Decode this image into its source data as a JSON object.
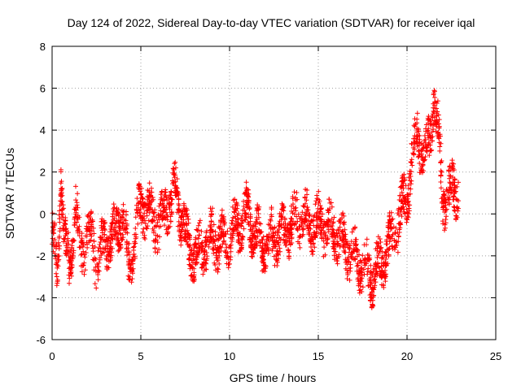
{
  "chart_data": {
    "type": "scatter",
    "title": "Day 124 of 2022, Sidereal Day-to-day VTEC variation (SDTVAR) for receiver iqal",
    "xlabel": "GPS time / hours",
    "ylabel": "SDTVAR / TECUs",
    "xlim": [
      0,
      25
    ],
    "ylim": [
      -6,
      8
    ],
    "xticks": [
      "0",
      "5",
      "10",
      "15",
      "20",
      "25"
    ],
    "yticks": [
      "8",
      "6",
      "4",
      "2",
      "0",
      "-2",
      "-4",
      "-6"
    ],
    "xtick_values": [
      0,
      5,
      10,
      15,
      20,
      25
    ],
    "ytick_values": [
      8,
      6,
      4,
      2,
      0,
      -2,
      -4,
      -6
    ],
    "grid": true,
    "marker": "plus",
    "marker_color": "#ff0000",
    "trend": {
      "x": [
        0,
        0.3,
        0.5,
        0.7,
        1.0,
        1.3,
        1.6,
        2.0,
        2.5,
        3.0,
        3.5,
        4.0,
        4.3,
        4.6,
        5.0,
        5.5,
        6.0,
        6.5,
        7.0,
        7.5,
        8.0,
        8.5,
        9.0,
        9.5,
        10.0,
        10.5,
        11.0,
        11.5,
        12.0,
        12.5,
        13.0,
        13.5,
        14.0,
        14.5,
        15.0,
        15.5,
        16.0,
        16.5,
        17.0,
        17.5,
        18.0,
        18.5,
        19.0,
        19.5,
        20.0,
        20.3,
        20.6,
        21.0,
        21.3,
        21.5,
        21.8,
        22.0,
        22.3,
        22.6,
        22.9
      ],
      "y": [
        -1.0,
        -3.0,
        2.0,
        -1.5,
        -2.5,
        0.5,
        -2.0,
        -1.0,
        -2.0,
        -1.5,
        -1.0,
        0.0,
        -2.5,
        -1.5,
        0.5,
        0.0,
        -0.5,
        0.5,
        1.0,
        -1.0,
        -2.0,
        -1.5,
        -1.0,
        -1.5,
        -1.0,
        -0.5,
        0.0,
        -1.0,
        -1.5,
        -1.0,
        -1.0,
        -0.5,
        0.0,
        -0.5,
        -0.5,
        -0.5,
        -1.0,
        -1.5,
        -2.0,
        -2.5,
        -3.0,
        -2.5,
        -1.5,
        -0.5,
        1.0,
        2.5,
        4.0,
        2.5,
        4.0,
        5.5,
        3.5,
        1.0,
        0.5,
        1.5,
        1.0
      ]
    },
    "spread": 0.9,
    "n_points": 2600
  }
}
